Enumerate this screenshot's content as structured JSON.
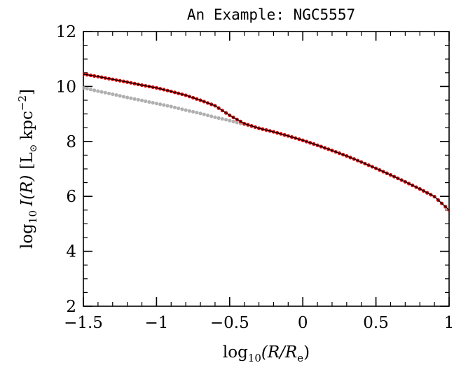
{
  "chart_data": {
    "type": "scatter",
    "title": "An Example: NGC5557",
    "xlabel": {
      "prefix": "log",
      "sub": "10",
      "body": "(R/R",
      "body_sub": "e",
      "suffix": ")"
    },
    "ylabel": {
      "prefix": "log",
      "sub": "10",
      "italic": "I(R)",
      "unit_open": "[L",
      "unit_sun": "⊙",
      "unit_kpc": "kpc",
      "unit_sup": "−2",
      "unit_close": "]"
    },
    "xlim": [
      -1.5,
      1.0
    ],
    "ylim": [
      2,
      12
    ],
    "xticks": [
      -1.5,
      -1,
      -0.5,
      0,
      0.5,
      1
    ],
    "xtick_labels": [
      "−1.5",
      "−1",
      "−0.5",
      "0",
      "0.5",
      "1"
    ],
    "yticks": [
      2,
      4,
      6,
      8,
      10,
      12
    ],
    "ytick_labels": [
      "2",
      "4",
      "6",
      "8",
      "10",
      "12"
    ],
    "x_minor_step": 0.1,
    "y_minor_step": 0.5,
    "grid": false,
    "legend": "none",
    "series": [
      {
        "color": "#b0b0b0",
        "marker": "dot",
        "x": [
          -1.5,
          -1.4,
          -1.3,
          -1.2,
          -1.1,
          -1.0,
          -0.9,
          -0.8,
          -0.7,
          -0.6,
          -0.5,
          -0.4,
          -0.3,
          -0.2,
          -0.1,
          0.0,
          0.1,
          0.2,
          0.3,
          0.4,
          0.5,
          0.6,
          0.7,
          0.8,
          0.9,
          1.0
        ],
        "y": [
          9.95,
          9.83,
          9.72,
          9.6,
          9.49,
          9.38,
          9.27,
          9.14,
          9.02,
          8.88,
          8.76,
          8.62,
          8.48,
          8.35,
          8.2,
          8.04,
          7.86,
          7.67,
          7.47,
          7.25,
          7.02,
          6.78,
          6.53,
          6.27,
          5.99,
          5.5
        ]
      },
      {
        "color": "#dd0000",
        "marker": "dot",
        "x": [
          -1.5,
          -1.4,
          -1.3,
          -1.2,
          -1.1,
          -1.0,
          -0.9,
          -0.8,
          -0.7,
          -0.6,
          -0.5,
          -0.4,
          -0.3,
          -0.2,
          -0.1,
          0.0,
          0.1,
          0.2,
          0.3,
          0.4,
          0.5,
          0.6,
          0.7,
          0.8,
          0.9,
          1.0
        ],
        "y": [
          10.45,
          10.36,
          10.26,
          10.16,
          10.05,
          9.95,
          9.82,
          9.68,
          9.5,
          9.3,
          8.95,
          8.65,
          8.48,
          8.35,
          8.2,
          8.04,
          7.86,
          7.67,
          7.47,
          7.25,
          7.02,
          6.78,
          6.53,
          6.27,
          5.99,
          5.5
        ]
      },
      {
        "color": "#000000",
        "marker": "line",
        "x": [
          -1.5,
          -1.4,
          -1.3,
          -1.2,
          -1.1,
          -1.0,
          -0.9,
          -0.8,
          -0.7,
          -0.6,
          -0.5,
          -0.4,
          -0.3,
          -0.2,
          -0.1,
          0.0,
          0.1,
          0.2,
          0.3,
          0.4,
          0.5,
          0.6,
          0.7,
          0.8,
          0.9,
          1.0
        ],
        "y": [
          10.45,
          10.36,
          10.26,
          10.16,
          10.05,
          9.95,
          9.82,
          9.68,
          9.5,
          9.3,
          8.95,
          8.65,
          8.48,
          8.35,
          8.2,
          8.04,
          7.86,
          7.67,
          7.47,
          7.25,
          7.02,
          6.78,
          6.53,
          6.27,
          5.99,
          5.5
        ]
      }
    ]
  }
}
